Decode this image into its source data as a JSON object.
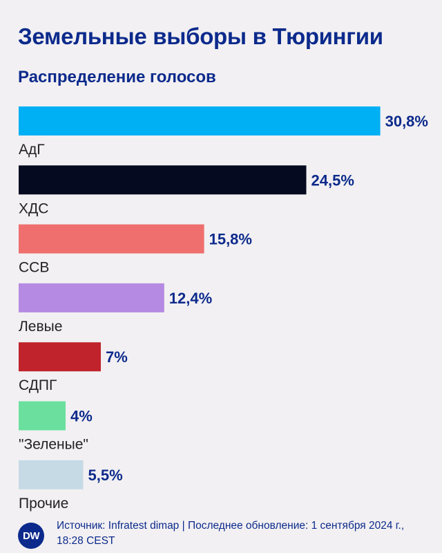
{
  "chart_data": {
    "type": "bar",
    "orientation": "horizontal",
    "title": "Земельные выборы в Тюрингии",
    "subtitle": "Распределение голосов",
    "categories": [
      "АдГ",
      "ХДС",
      "ССВ",
      "Левые",
      "СДПГ",
      "\"Зеленые\"",
      "Прочие"
    ],
    "values": [
      30.8,
      24.5,
      15.8,
      12.4,
      7,
      4,
      5.5
    ],
    "value_labels": [
      "30,8%",
      "24,5%",
      "15,8%",
      "12,4%",
      "7%",
      "4%",
      "5,5%"
    ],
    "colors": [
      "#00b0f5",
      "#050a20",
      "#ef6e6e",
      "#b58ae2",
      "#c0232b",
      "#6be09e",
      "#c6dae6"
    ],
    "grid": false,
    "legend": "none"
  },
  "footer": {
    "logo_text": "DW",
    "source": "Источник: Infratest dimap | Последнее обновление: 1 сентября 2024 г., 18:28 CEST"
  },
  "style": {
    "text_color": "#0c2a8c",
    "label_color": "#222222",
    "background": "#f2f0f2"
  }
}
